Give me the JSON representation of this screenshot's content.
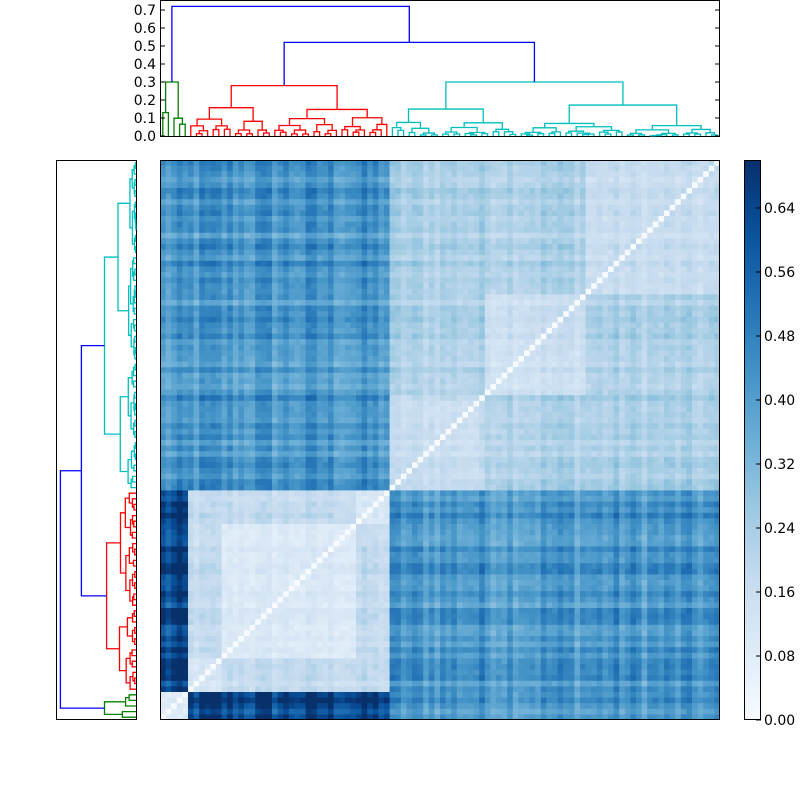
{
  "chart_data": {
    "type": "heatmap",
    "title": "",
    "description": "Clustered distance matrix heatmap with top and left dendrograms (100 x 100)",
    "n_leaves": 100,
    "clusters": [
      {
        "name": "green",
        "color": "#008000",
        "size": 5,
        "merge_height": 0.3
      },
      {
        "name": "red",
        "color": "#ff0000",
        "size": 36,
        "merge_height": 0.28
      },
      {
        "name": "cyan",
        "color": "#00bfbf",
        "size": 59,
        "merge_height": 0.3
      }
    ],
    "links": [
      {
        "between": [
          "red",
          "cyan"
        ],
        "height": 0.52,
        "color": "#0000ff"
      },
      {
        "between": [
          "green",
          "red+cyan"
        ],
        "height": 0.72,
        "color": "#0000ff"
      }
    ],
    "block_means": {
      "green-green": 0.08,
      "green-red": 0.62,
      "green-cyan": 0.4,
      "red-red": 0.1,
      "red-cyan": 0.42,
      "cyan-cyan": 0.16,
      "cyan-cyan-subA": 0.4
    },
    "top_dendrogram": {
      "ylim": [
        0.0,
        0.75
      ],
      "yticks": [
        "0.0",
        "0.1",
        "0.2",
        "0.3",
        "0.4",
        "0.5",
        "0.6",
        "0.7"
      ]
    },
    "colorbar": {
      "cmap": "Blues",
      "vmin": 0.0,
      "vmax": 0.7,
      "ticks": [
        "0.00",
        "0.08",
        "0.16",
        "0.24",
        "0.32",
        "0.40",
        "0.48",
        "0.56",
        "0.64"
      ]
    }
  }
}
